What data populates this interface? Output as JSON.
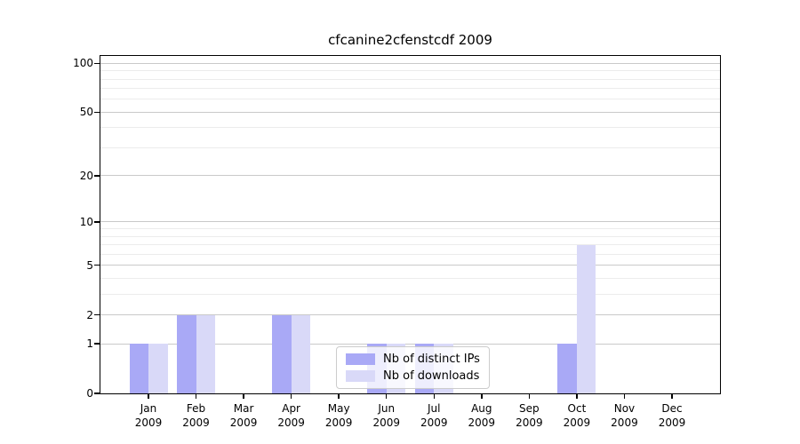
{
  "chart_data": {
    "type": "bar",
    "title": "cfcanine2cfenstcdf 2009",
    "categories": [
      "Jan",
      "Feb",
      "Mar",
      "Apr",
      "May",
      "Jun",
      "Jul",
      "Aug",
      "Sep",
      "Oct",
      "Nov",
      "Dec"
    ],
    "year_label": "2009",
    "series": [
      {
        "name": "Nb of distinct IPs",
        "color": "#a9a9f6",
        "values": [
          1,
          2,
          0,
          2,
          0,
          1,
          1,
          0,
          0,
          1,
          0,
          0
        ]
      },
      {
        "name": "Nb of downloads",
        "color": "#d9d9f8",
        "values": [
          1,
          2,
          0,
          2,
          0,
          1,
          1,
          0,
          0,
          7,
          0,
          0
        ]
      }
    ],
    "yscale": "log1p",
    "ylim": [
      0,
      111
    ],
    "y_major_ticks": [
      100,
      50,
      20,
      10,
      5,
      2,
      1,
      0
    ],
    "y_minor_gridlines": [
      3,
      4,
      6,
      7,
      8,
      9,
      30,
      40,
      60,
      70,
      80,
      90
    ],
    "grid": "horizontal",
    "legend_position": "lower center",
    "colors": {
      "major_grid": "#c9c9c9",
      "minor_grid": "#ececec",
      "axis": "#000000",
      "text": "#000000",
      "background": "#ffffff"
    }
  }
}
